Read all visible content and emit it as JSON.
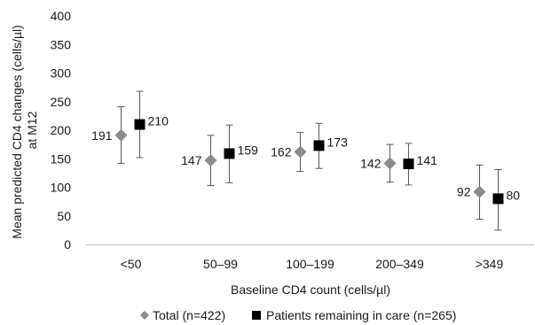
{
  "chart_data": {
    "type": "scatter",
    "title": "",
    "xlabel": "Baseline CD4 count (cells/µl)",
    "ylabel_lines": [
      "Mean predicted CD4 changes (cells/µl)",
      "at M12"
    ],
    "ylim": [
      0,
      400
    ],
    "yticks": [
      "0",
      "50",
      "100",
      "150",
      "200",
      "250",
      "300",
      "350",
      "400"
    ],
    "categories": [
      "<50",
      "50–99",
      "100–199",
      "200–349",
      ">349"
    ],
    "grid": false,
    "legend_position": "bottom",
    "series": [
      {
        "name": "Total (n=422)",
        "marker": "diamond",
        "color": "#8c8c8c",
        "values": [
          191,
          147,
          162,
          142,
          92
        ],
        "labels": [
          "191",
          "147",
          "162",
          "142",
          "92"
        ],
        "ci_low": [
          142,
          103,
          128,
          109,
          44
        ],
        "ci_high": [
          241,
          191,
          196,
          175,
          139
        ]
      },
      {
        "name": "Patients remaining in care (n=265)",
        "marker": "square",
        "color": "#000000",
        "values": [
          210,
          159,
          173,
          141,
          80
        ],
        "labels": [
          "210",
          "159",
          "173",
          "141",
          "80"
        ],
        "ci_low": [
          152,
          108,
          133,
          104,
          25
        ],
        "ci_high": [
          268,
          209,
          212,
          177,
          131
        ]
      }
    ]
  }
}
